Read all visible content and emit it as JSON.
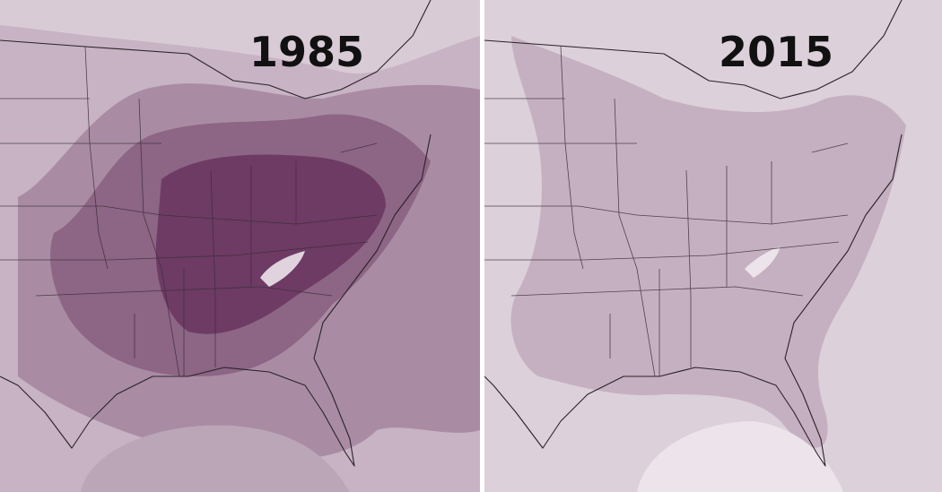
{
  "panels": [
    {
      "year": "1985"
    },
    {
      "year": "2015"
    }
  ]
}
